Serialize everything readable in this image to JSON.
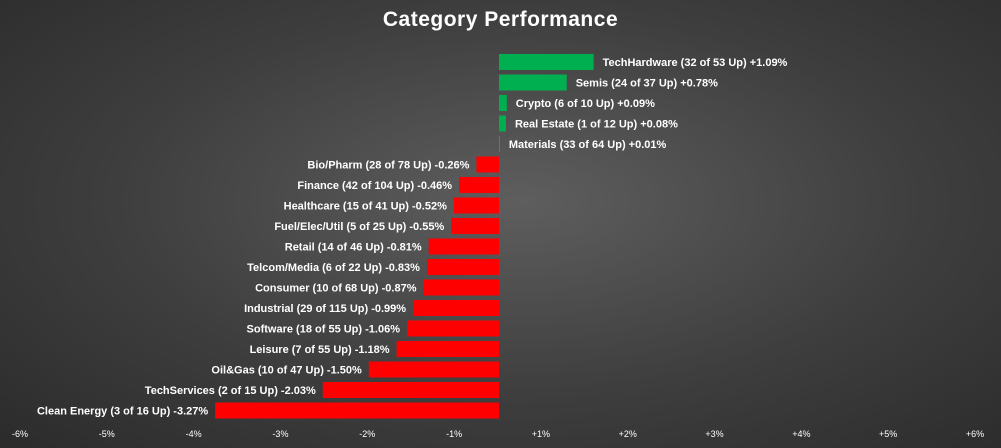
{
  "chart_data": {
    "type": "bar",
    "orientation": "horizontal",
    "title": "Category Performance",
    "xlabel": "",
    "ylabel": "",
    "xlim": [
      -6,
      6
    ],
    "x_ticks": [
      "-6%",
      "-5%",
      "-4%",
      "-3%",
      "-2%",
      "-1%",
      "+1%",
      "+2%",
      "+3%",
      "+4%",
      "+5%",
      "+6%"
    ],
    "grid": false,
    "colors": {
      "positive": "#00b050",
      "negative": "#ff0000"
    },
    "categories": [
      "TechHardware (32 of 53 Up) +1.09%",
      "Semis (24 of 37 Up) +0.78%",
      "Crypto (6 of 10 Up) +0.09%",
      "Real Estate (1 of 12 Up) +0.08%",
      "Materials (33 of 64 Up) +0.01%",
      "Bio/Pharm (28 of 78 Up) -0.26%",
      "Finance (42 of 104 Up) -0.46%",
      "Healthcare (15 of 41 Up) -0.52%",
      "Fuel/Elec/Util (5 of 25 Up) -0.55%",
      "Retail (14 of 46 Up) -0.81%",
      "Telcom/Media (6 of 22 Up) -0.83%",
      "Consumer (10 of 68 Up) -0.87%",
      "Industrial (29 of 115 Up) -0.99%",
      "Software (18 of 55 Up) -1.06%",
      "Leisure (7 of 55 Up) -1.18%",
      "Oil&Gas (10 of 47 Up) -1.50%",
      "TechServices (2 of 15 Up) -2.03%",
      "Clean Energy (3 of 16 Up) -3.27%"
    ],
    "values": [
      1.09,
      0.78,
      0.09,
      0.08,
      0.01,
      -0.26,
      -0.46,
      -0.52,
      -0.55,
      -0.81,
      -0.83,
      -0.87,
      -0.99,
      -1.06,
      -1.18,
      -1.5,
      -2.03,
      -3.27
    ]
  }
}
